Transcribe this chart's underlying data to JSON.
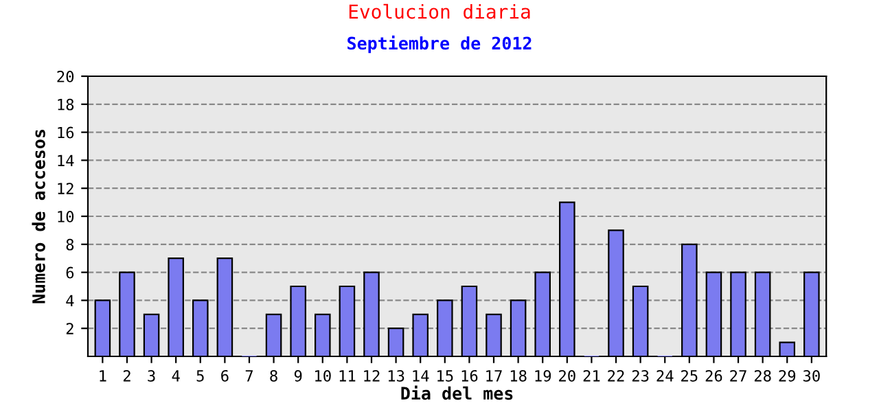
{
  "chart_data": {
    "type": "bar",
    "title": "Evolucion diaria",
    "subtitle": "Septiembre de 2012",
    "xlabel": "Dia del mes",
    "ylabel": "Numero de accesos",
    "categories": [
      "1",
      "2",
      "3",
      "4",
      "5",
      "6",
      "7",
      "8",
      "9",
      "10",
      "11",
      "12",
      "13",
      "14",
      "15",
      "16",
      "17",
      "18",
      "19",
      "20",
      "21",
      "22",
      "23",
      "24",
      "25",
      "26",
      "27",
      "28",
      "29",
      "30"
    ],
    "values": [
      4,
      6,
      3,
      7,
      4,
      7,
      0,
      3,
      5,
      3,
      5,
      6,
      2,
      3,
      4,
      5,
      3,
      4,
      6,
      11,
      0,
      9,
      5,
      0,
      8,
      6,
      6,
      6,
      1,
      6
    ],
    "color": "#7b7bf0",
    "ylim": [
      0,
      20
    ],
    "yticks": [
      2,
      4,
      6,
      8,
      10,
      12,
      14,
      16,
      18,
      20
    ],
    "grid": "y"
  }
}
